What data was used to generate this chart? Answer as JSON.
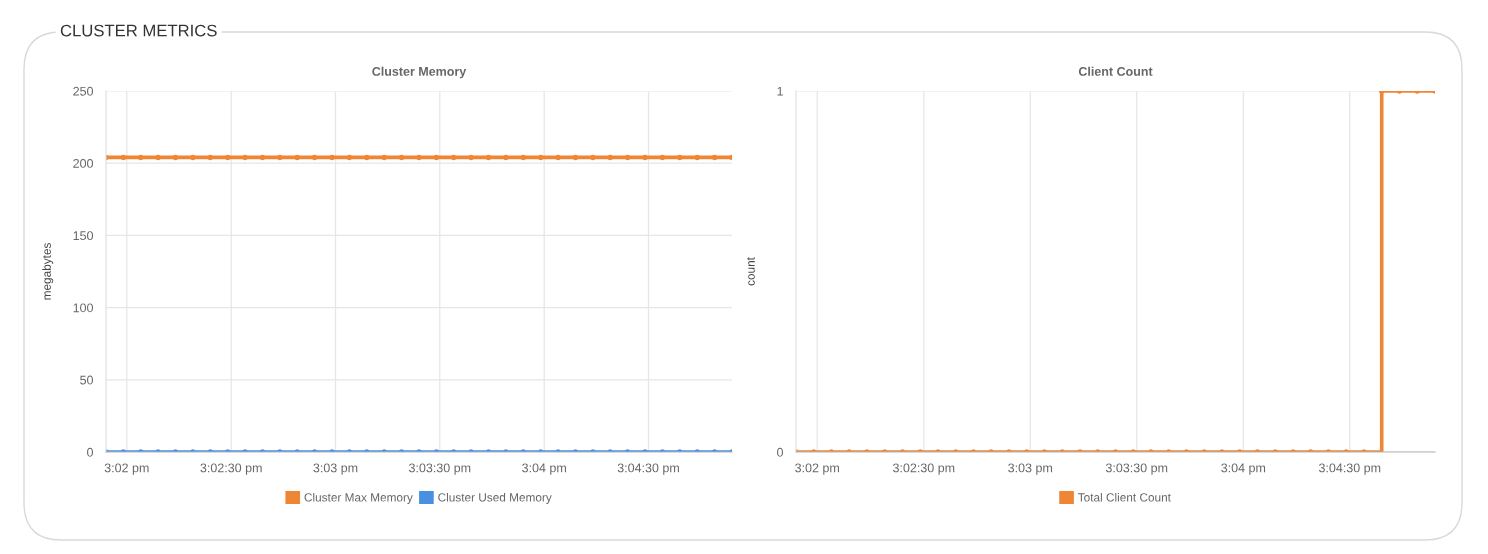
{
  "chart_data": [
    {
      "type": "line",
      "title": "Cluster Memory",
      "ylabel": "megabytes",
      "annotations": [
        "CLUSTER METRICS"
      ],
      "x": [
        15.03167,
        15.03306,
        15.03444,
        15.03583,
        15.03722,
        15.03861,
        15.04,
        15.04139,
        15.04278,
        15.04417,
        15.04556,
        15.04694,
        15.04833,
        15.04972,
        15.05111,
        15.0525,
        15.05389,
        15.05528,
        15.05667,
        15.05806,
        15.05944,
        15.06083,
        15.06222,
        15.06361,
        15.065,
        15.06639,
        15.06778,
        15.06917,
        15.07056,
        15.07194,
        15.07333,
        15.07472,
        15.07611,
        15.0775,
        15.07889,
        15.08028,
        15.08167
      ],
      "series": [
        {
          "name": "Cluster Max Memory",
          "color": "#ef8636",
          "values": [
            204,
            204,
            204,
            204,
            204,
            204,
            204,
            204,
            204,
            204,
            204,
            204,
            204,
            204,
            204,
            204,
            204,
            204,
            204,
            204,
            204,
            204,
            204,
            204,
            204,
            204,
            204,
            204,
            204,
            204,
            204,
            204,
            204,
            204,
            204,
            204,
            204
          ]
        },
        {
          "name": "Cluster Used Memory",
          "color": "#4a90e2",
          "values": [
            0,
            0,
            0,
            0,
            0,
            0,
            0,
            0,
            0,
            0,
            0,
            0,
            0,
            0,
            0,
            0,
            0,
            0,
            0,
            0,
            0,
            0,
            0,
            0,
            0,
            0,
            0,
            0,
            0,
            0,
            0,
            0,
            0,
            0,
            0,
            0,
            0
          ]
        }
      ],
      "xlim": [
        15.03167,
        15.08167
      ],
      "xticks": [
        {
          "value": 15.03333,
          "label": "3:02 pm"
        },
        {
          "value": 15.04167,
          "label": "3:02:30 pm"
        },
        {
          "value": 15.05,
          "label": "3:03 pm"
        },
        {
          "value": 15.05833,
          "label": "3:03:30 pm"
        },
        {
          "value": 15.06667,
          "label": "3:04 pm"
        },
        {
          "value": 15.075,
          "label": "3:04:30 pm"
        }
      ],
      "ylim": [
        0,
        250
      ],
      "yticks": [
        0,
        50,
        100,
        150,
        200,
        250
      ],
      "grid": true,
      "legend": "bottom",
      "marker": "circle",
      "line_style": "solid"
    },
    {
      "type": "step",
      "title": "Client Count",
      "ylabel": "count",
      "x": [
        15.03167,
        15.03306,
        15.03444,
        15.03583,
        15.03722,
        15.03861,
        15.04,
        15.04139,
        15.04278,
        15.04417,
        15.04556,
        15.04694,
        15.04833,
        15.04972,
        15.05111,
        15.0525,
        15.05389,
        15.05528,
        15.05667,
        15.05806,
        15.05944,
        15.06083,
        15.06222,
        15.06361,
        15.065,
        15.06639,
        15.06778,
        15.06917,
        15.07056,
        15.07194,
        15.07333,
        15.07472,
        15.07611,
        15.0775,
        15.07889,
        15.08028,
        15.08167
      ],
      "series": [
        {
          "name": "Total Client Count",
          "color": "#ef8636",
          "values": [
            0,
            0,
            0,
            0,
            0,
            0,
            0,
            0,
            0,
            0,
            0,
            0,
            0,
            0,
            0,
            0,
            0,
            0,
            0,
            0,
            0,
            0,
            0,
            0,
            0,
            0,
            0,
            0,
            0,
            0,
            0,
            0,
            0,
            1,
            1,
            1,
            1
          ]
        }
      ],
      "xlim": [
        15.03167,
        15.08167
      ],
      "xticks": [
        {
          "value": 15.03333,
          "label": "3:02 pm"
        },
        {
          "value": 15.04167,
          "label": "3:02:30 pm"
        },
        {
          "value": 15.05,
          "label": "3:03 pm"
        },
        {
          "value": 15.05833,
          "label": "3:03:30 pm"
        },
        {
          "value": 15.06667,
          "label": "3:04 pm"
        },
        {
          "value": 15.075,
          "label": "3:04:30 pm"
        }
      ],
      "ylim": [
        0,
        1
      ],
      "yticks": [
        0,
        1
      ],
      "grid": true,
      "legend": "bottom",
      "marker": "circle",
      "line_style": "solid"
    }
  ]
}
